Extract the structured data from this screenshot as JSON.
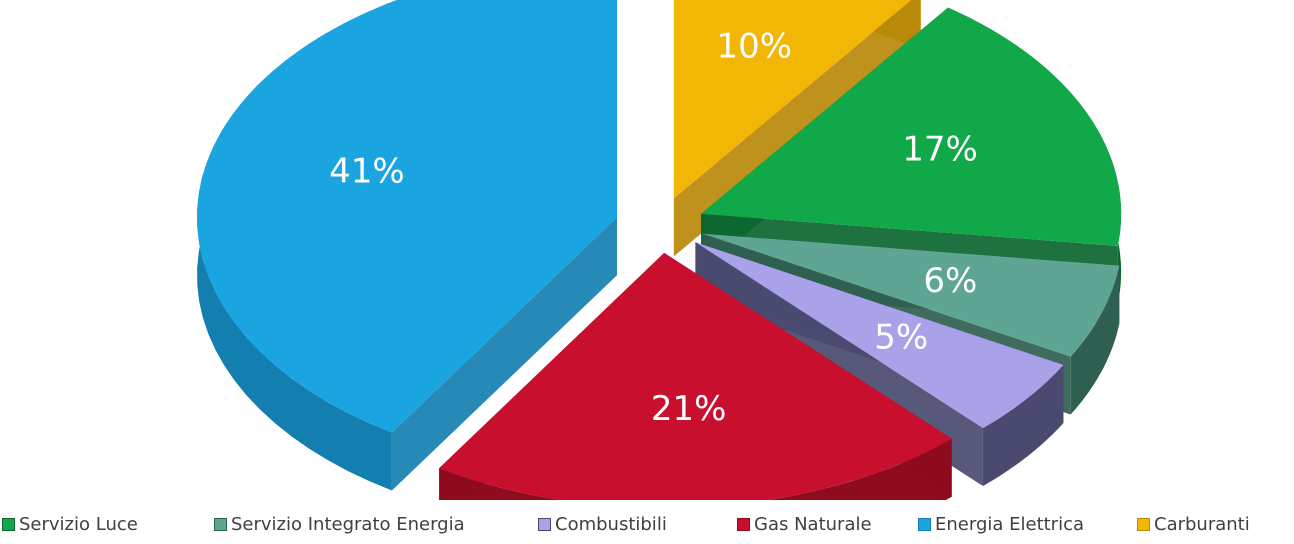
{
  "chart_data": {
    "type": "pie",
    "style": "3d-exploded",
    "title": "",
    "slices": [
      {
        "name": "Servizio Luce",
        "value": 17,
        "label": "17%",
        "color": "#10a848",
        "side_color": "#0b6630"
      },
      {
        "name": "Servizio Integrato Energia",
        "value": 6,
        "label": "6%",
        "color": "#5ea594",
        "side_color": "#2f5f50"
      },
      {
        "name": "Combustibili",
        "value": 5,
        "label": "5%",
        "color": "#a9a2e8",
        "side_color": "#4a4a70"
      },
      {
        "name": "Gas Naturale",
        "value": 21,
        "label": "21%",
        "color": "#c8102e",
        "side_color": "#8e0c1e"
      },
      {
        "name": "Energia Elettrica",
        "value": 41,
        "label": "41%",
        "color": "#1ba5e0",
        "side_color": "#137fb0"
      },
      {
        "name": "Carburanti",
        "value": 10,
        "label": "10%",
        "color": "#f2b605",
        "side_color": "#b8890a"
      }
    ],
    "legend_position": "bottom"
  }
}
